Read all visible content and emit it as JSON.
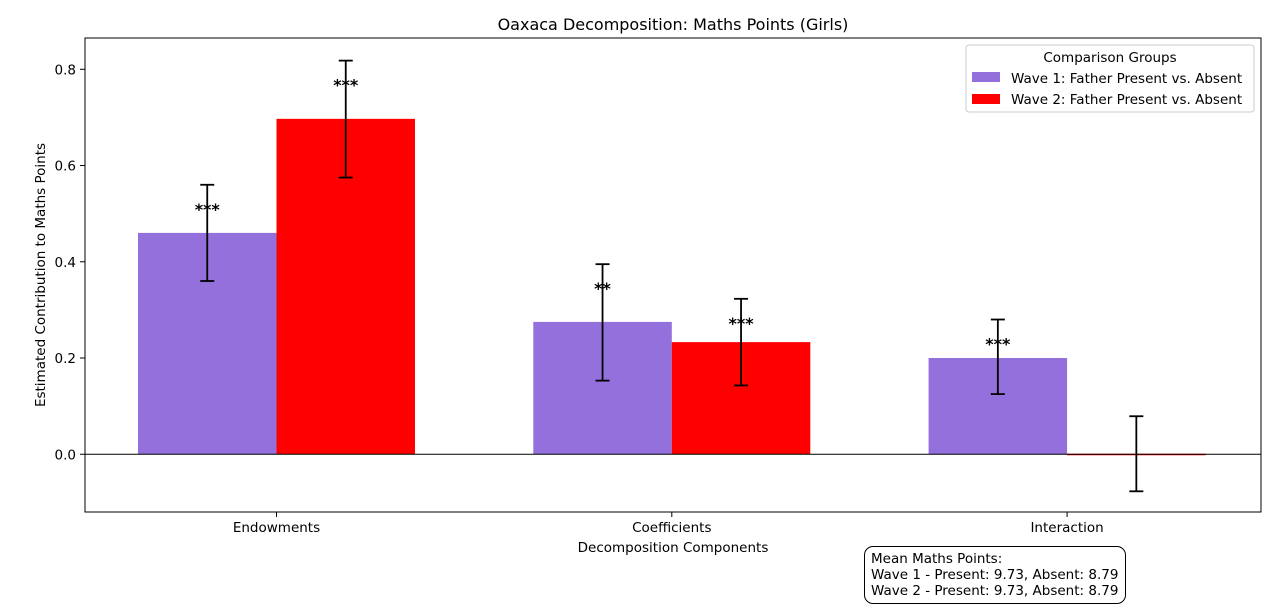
{
  "chart_data": {
    "type": "bar",
    "title": "Oaxaca Decomposition: Maths Points (Girls)",
    "xlabel": "Decomposition Components",
    "ylabel": "Estimated Contribution to Maths Points",
    "categories": [
      "Endowments",
      "Coefficients",
      "Interaction"
    ],
    "ylim": [
      -0.12,
      0.865
    ],
    "yticks": [
      0.0,
      0.2,
      0.4,
      0.6,
      0.8
    ],
    "ytick_labels": [
      "0.0",
      "0.2",
      "0.4",
      "0.6",
      "0.8"
    ],
    "series": [
      {
        "name": "Wave 1: Father Present vs. Absent",
        "color": "#9370db",
        "values": [
          0.46,
          0.275,
          0.2
        ],
        "ci_low": [
          0.36,
          0.153,
          0.125
        ],
        "ci_high": [
          0.56,
          0.395,
          0.28
        ],
        "significance": [
          "***",
          "**",
          "***"
        ]
      },
      {
        "name": "Wave 2: Father Present vs. Absent",
        "color": "#ff0000",
        "values": [
          0.697,
          0.233,
          0.001
        ],
        "ci_low": [
          0.575,
          0.143,
          -0.077
        ],
        "ci_high": [
          0.818,
          0.323,
          0.079
        ],
        "significance": [
          "***",
          "***",
          ""
        ]
      }
    ],
    "legend": {
      "title": "Comparison Groups",
      "position": "top-right"
    },
    "grid": false
  },
  "annotation": {
    "lines": [
      "Mean Maths Points:",
      "Wave 1 - Present: 9.73, Absent: 8.79",
      "Wave 2 - Present: 9.73, Absent: 8.79"
    ]
  }
}
